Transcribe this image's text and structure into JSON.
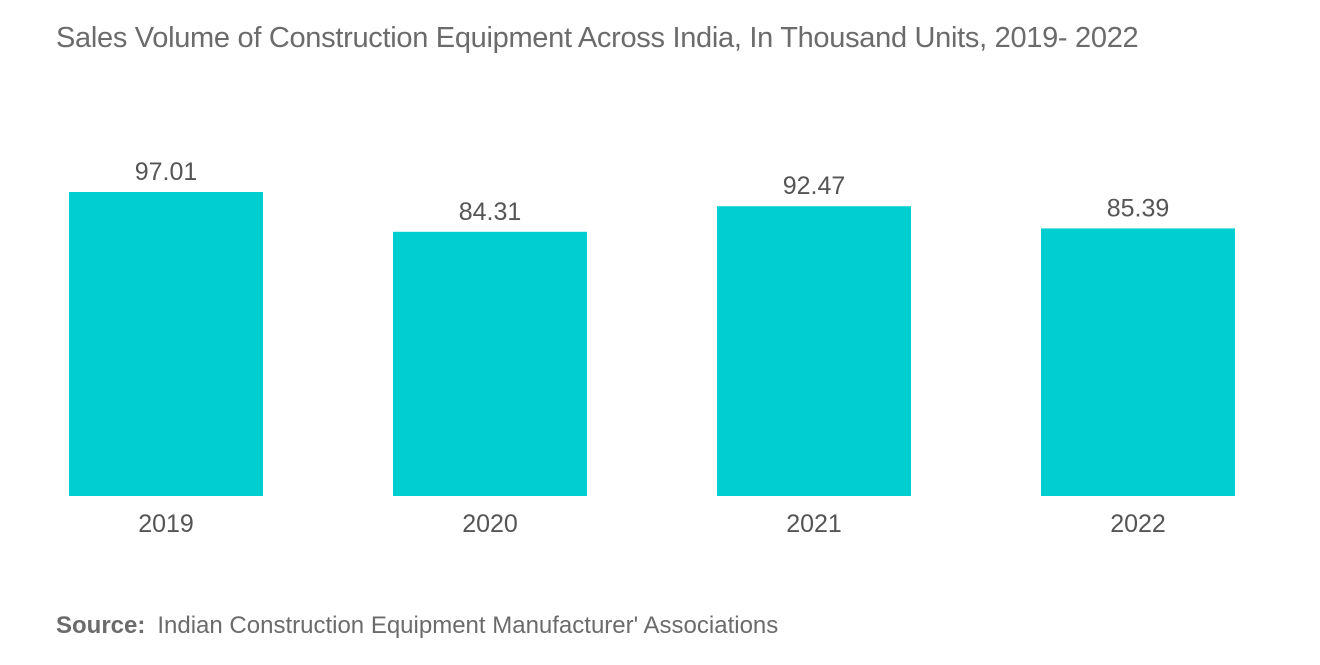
{
  "title": "Sales Volume of Construction Equipment Across India, In Thousand Units, 2019- 2022",
  "source": {
    "label": "Source:",
    "text": "Indian Construction Equipment Manufacturer' Associations"
  },
  "colors": {
    "bar": "#00CED1",
    "text": "#555555",
    "title": "#6b6b6b"
  },
  "chart_data": {
    "type": "bar",
    "title": "Sales Volume of Construction Equipment Across India, In Thousand Units, 2019- 2022",
    "xlabel": "",
    "ylabel": "",
    "categories": [
      "2019",
      "2020",
      "2021",
      "2022"
    ],
    "values": [
      97.01,
      84.31,
      92.47,
      85.39
    ],
    "value_labels": [
      "97.01",
      "84.31",
      "92.47",
      "85.39"
    ],
    "ylim": [
      0,
      97.01
    ],
    "grid": false,
    "legend": "none"
  }
}
